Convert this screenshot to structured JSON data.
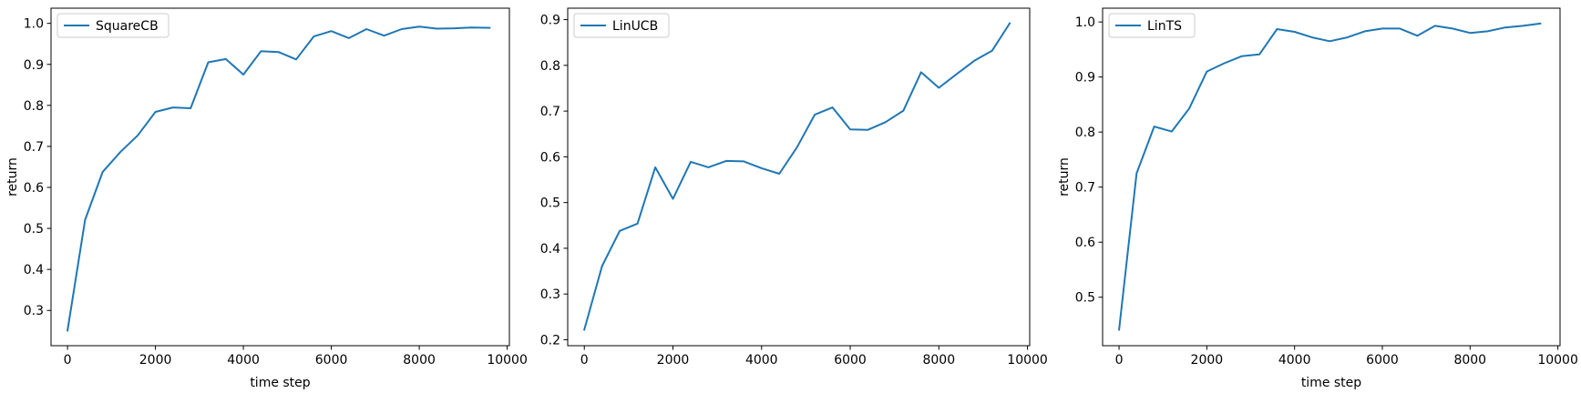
{
  "chart_data": [
    {
      "type": "line",
      "xlabel": "time step",
      "ylabel": "return",
      "xlim": [
        -375,
        10050
      ],
      "ylim": [
        0.214,
        1.037
      ],
      "xticks": [
        0,
        2000,
        4000,
        6000,
        8000,
        10000
      ],
      "xtick_labels": [
        "0",
        "2000",
        "4000",
        "6000",
        "8000",
        "10000"
      ],
      "yticks": [
        0.3,
        0.4,
        0.5,
        0.6,
        0.7,
        0.8,
        0.9,
        1.0
      ],
      "ytick_labels": [
        "0.3",
        "0.4",
        "0.5",
        "0.6",
        "0.7",
        "0.8",
        "0.9",
        "1.0"
      ],
      "grid": false,
      "legend_position": "upper left",
      "series": [
        {
          "name": "SquareCB",
          "color": "#1f77b4",
          "x": [
            0,
            400,
            800,
            1200,
            1600,
            2000,
            2400,
            2800,
            3200,
            3600,
            4000,
            4400,
            4800,
            5200,
            5600,
            6000,
            6400,
            6800,
            7200,
            7600,
            8000,
            8400,
            8800,
            9200,
            9600
          ],
          "y": [
            0.251,
            0.521,
            0.638,
            0.686,
            0.727,
            0.784,
            0.795,
            0.793,
            0.905,
            0.913,
            0.875,
            0.932,
            0.93,
            0.912,
            0.968,
            0.981,
            0.964,
            0.986,
            0.97,
            0.986,
            0.992,
            0.987,
            0.988,
            0.99,
            0.989
          ]
        }
      ]
    },
    {
      "type": "line",
      "xlabel": "",
      "ylabel": "",
      "xlim": [
        -375,
        10050
      ],
      "ylim": [
        0.187,
        0.925
      ],
      "xticks": [
        0,
        2000,
        4000,
        6000,
        8000,
        10000
      ],
      "xtick_labels": [
        "0",
        "2000",
        "4000",
        "6000",
        "8000",
        "10000"
      ],
      "yticks": [
        0.2,
        0.3,
        0.4,
        0.5,
        0.6,
        0.7,
        0.8,
        0.9
      ],
      "ytick_labels": [
        "0.2",
        "0.3",
        "0.4",
        "0.5",
        "0.6",
        "0.7",
        "0.8",
        "0.9"
      ],
      "grid": false,
      "legend_position": "upper left",
      "series": [
        {
          "name": "LinUCB",
          "color": "#1f77b4",
          "x": [
            0,
            400,
            800,
            1200,
            1600,
            2000,
            2400,
            2800,
            3200,
            3600,
            4000,
            4400,
            4800,
            5200,
            5600,
            6000,
            6400,
            6800,
            7200,
            7600,
            8000,
            8400,
            8800,
            9200,
            9600
          ],
          "y": [
            0.222,
            0.361,
            0.438,
            0.454,
            0.577,
            0.508,
            0.589,
            0.577,
            0.591,
            0.59,
            0.575,
            0.563,
            0.621,
            0.692,
            0.708,
            0.66,
            0.659,
            0.676,
            0.701,
            0.785,
            0.751,
            0.781,
            0.81,
            0.832,
            0.892
          ]
        }
      ]
    },
    {
      "type": "line",
      "xlabel": "time step",
      "ylabel": "return",
      "xlim": [
        -375,
        10050
      ],
      "ylim": [
        0.412,
        1.025
      ],
      "xticks": [
        0,
        2000,
        4000,
        6000,
        8000,
        10000
      ],
      "xtick_labels": [
        "0",
        "2000",
        "4000",
        "6000",
        "8000",
        "10000"
      ],
      "yticks": [
        0.5,
        0.6,
        0.7,
        0.8,
        0.9,
        1.0
      ],
      "ytick_labels": [
        "0.5",
        "0.6",
        "0.7",
        "0.8",
        "0.9",
        "1.0"
      ],
      "grid": false,
      "legend_position": "upper left",
      "series": [
        {
          "name": "LinTS",
          "color": "#1f77b4",
          "x": [
            0,
            400,
            800,
            1200,
            1600,
            2000,
            2400,
            2800,
            3200,
            3600,
            4000,
            4400,
            4800,
            5200,
            5600,
            6000,
            6400,
            6800,
            7200,
            7600,
            8000,
            8400,
            8800,
            9200,
            9600
          ],
          "y": [
            0.441,
            0.725,
            0.81,
            0.801,
            0.843,
            0.91,
            0.925,
            0.938,
            0.941,
            0.987,
            0.982,
            0.972,
            0.965,
            0.972,
            0.983,
            0.988,
            0.988,
            0.975,
            0.993,
            0.988,
            0.98,
            0.983,
            0.99,
            0.993,
            0.997
          ]
        }
      ]
    }
  ]
}
